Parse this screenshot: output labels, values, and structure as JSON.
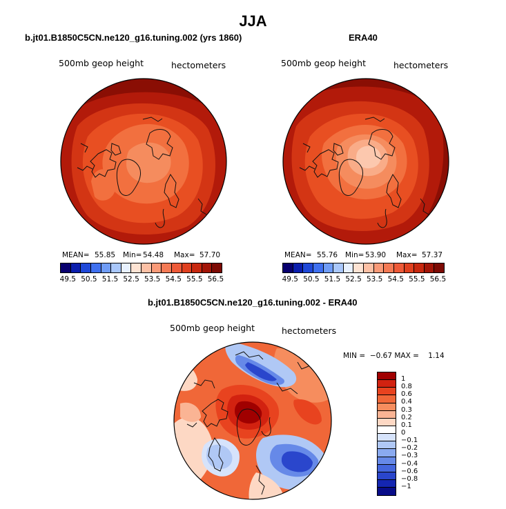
{
  "figure": {
    "title": "JJA"
  },
  "panel_left": {
    "title": "b.jt01.B1850C5CN.ne120_g16.tuning.002 (yrs 1860)",
    "variable": "500mb geop height",
    "units": "hectometers",
    "stats": {
      "mean_label": "MEAN=",
      "mean": "55.85",
      "min_label": "Min=",
      "min": "54.48",
      "max_label": "Max=",
      "max": "57.70"
    }
  },
  "panel_right": {
    "title": "ERA40",
    "variable": "500mb geop height",
    "units": "hectometers",
    "stats": {
      "mean_label": "MEAN=",
      "mean": "55.76",
      "min_label": "Min=",
      "min": "53.90",
      "max_label": "Max=",
      "max": "57.37"
    }
  },
  "panel_diff": {
    "title": "b.jt01.B1850C5CN.ne120_g16.tuning.002 - ERA40",
    "variable": "500mb geop height",
    "units": "hectometers",
    "minmax_label": "MIN =  −0.67 MAX =    1.14"
  },
  "colorbar_main": {
    "colors": [
      "#08006e",
      "#0b1ead",
      "#1f48d8",
      "#3f70f0",
      "#6f9cf7",
      "#a9c7fb",
      "#e8f1ff",
      "#fde3d3",
      "#fcc0a5",
      "#f99a78",
      "#f47a55",
      "#ee5a38",
      "#e0401f",
      "#c8280f",
      "#a31508",
      "#7d0a04"
    ],
    "tick_labels": [
      "49.5",
      "50.5",
      "51.5",
      "52.5",
      "53.5",
      "54.5",
      "55.5",
      "56.5"
    ]
  },
  "colorbar_diff": {
    "colors": [
      "#a00000",
      "#d22210",
      "#e8431f",
      "#f06738",
      "#f68d5e",
      "#fab494",
      "#fdd8c4",
      "#ffffff",
      "#d6e3fb",
      "#b0c8f5",
      "#8aaaf0",
      "#6689e8",
      "#4466dd",
      "#2a46cc",
      "#1426b2",
      "#080c88"
    ],
    "labels": [
      "1",
      "0.8",
      "0.6",
      "0.4",
      "0.3",
      "0.2",
      "0.1",
      "0",
      "−0.1",
      "−0.2",
      "−0.3",
      "−0.4",
      "−0.6",
      "−0.8",
      "−1"
    ]
  }
}
